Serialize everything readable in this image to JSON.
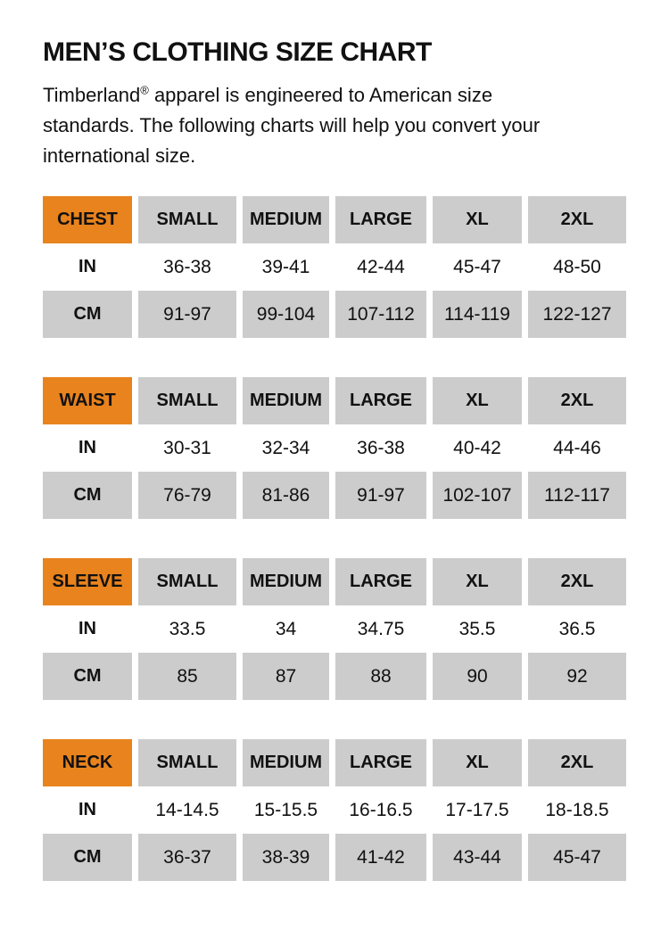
{
  "page": {
    "title": "MEN’S CLOTHING SIZE CHART",
    "intro_brand": "Timberland",
    "intro_reg": "®",
    "intro_rest": " apparel is engineered to American size standards. The following charts will help you convert your international size."
  },
  "colors": {
    "accent_orange": "#E8831D",
    "cell_gray": "#CCCCCC",
    "text_black": "#111111"
  },
  "size_labels": [
    "SMALL",
    "MEDIUM",
    "LARGE",
    "XL",
    "2XL"
  ],
  "tables": [
    {
      "name": "CHEST",
      "rows": [
        {
          "label": "IN",
          "values": [
            "36-38",
            "39-41",
            "42-44",
            "45-47",
            "48-50"
          ]
        },
        {
          "label": "CM",
          "values": [
            "91-97",
            "99-104",
            "107-112",
            "114-119",
            "122-127"
          ]
        }
      ]
    },
    {
      "name": "WAIST",
      "rows": [
        {
          "label": "IN",
          "values": [
            "30-31",
            "32-34",
            "36-38",
            "40-42",
            "44-46"
          ]
        },
        {
          "label": "CM",
          "values": [
            "76-79",
            "81-86",
            "91-97",
            "102-107",
            "112-117"
          ]
        }
      ]
    },
    {
      "name": "SLEEVE",
      "rows": [
        {
          "label": "IN",
          "values": [
            "33.5",
            "34",
            "34.75",
            "35.5",
            "36.5"
          ]
        },
        {
          "label": "CM",
          "values": [
            "85",
            "87",
            "88",
            "90",
            "92"
          ]
        }
      ]
    },
    {
      "name": "NECK",
      "rows": [
        {
          "label": "IN",
          "values": [
            "14-14.5",
            "15-15.5",
            "16-16.5",
            "17-17.5",
            "18-18.5"
          ]
        },
        {
          "label": "CM",
          "values": [
            "36-37",
            "38-39",
            "41-42",
            "43-44",
            "45-47"
          ]
        }
      ]
    }
  ]
}
